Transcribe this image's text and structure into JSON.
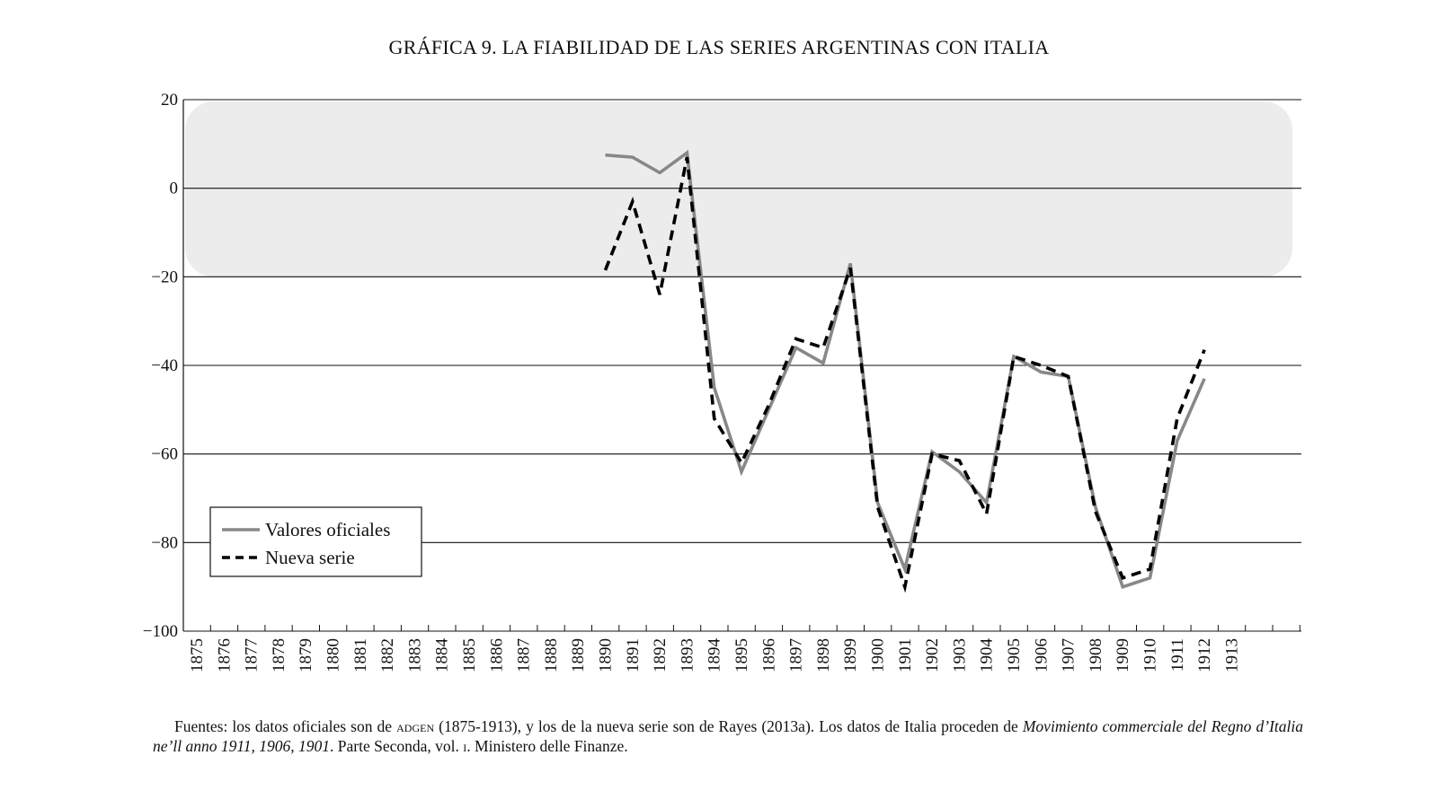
{
  "chart_data": {
    "type": "line",
    "title": "GRÁFICA 9. LA FIABILIDAD DE LAS SERIES ARGENTINAS CON ITALIA",
    "xlabel": "",
    "ylabel": "",
    "ylim": [
      -100,
      20
    ],
    "y_ticks": [
      20,
      0,
      -20,
      -40,
      -60,
      -80,
      -100
    ],
    "y_tick_labels": [
      "20",
      "0",
      "−20",
      "−40",
      "−60",
      "−80",
      "−100"
    ],
    "x_tick_labels": [
      "1875",
      "1876",
      "1877",
      "1878",
      "1879",
      "1880",
      "1881",
      "1882",
      "1883",
      "1884",
      "1885",
      "1886",
      "1887",
      "1888",
      "1889",
      "1890",
      "1891",
      "1892",
      "1893",
      "1894",
      "1895",
      "1896",
      "1897",
      "1898",
      "1899",
      "1900",
      "1901",
      "1902",
      "1903",
      "1904",
      "1905",
      "1906",
      "1907",
      "1908",
      "1909",
      "1910",
      "1911",
      "1912",
      "1913"
    ],
    "grid": "horizontal",
    "shaded_band": [
      -20,
      20
    ],
    "legend": {
      "position": "bottom-left",
      "entries": [
        "Valores oficiales",
        "Nueva serie"
      ]
    },
    "series": [
      {
        "name": "Valores oficiales",
        "style": "solid",
        "color": "#888888",
        "x": [
          1890,
          1891,
          1892,
          1893,
          1894,
          1895,
          1896,
          1897,
          1898,
          1899,
          1900,
          1901,
          1902,
          1903,
          1904,
          1905,
          1906,
          1907,
          1908,
          1909,
          1910,
          1911,
          1912
        ],
        "values": [
          7.5,
          7,
          3.5,
          8,
          -45,
          -64,
          -50,
          -36,
          -39.5,
          -17,
          -71,
          -86,
          -59.5,
          -64,
          -71,
          -38,
          -41.5,
          -42.5,
          -72,
          -90,
          -88,
          -57,
          -43
        ]
      },
      {
        "name": "Nueva serie",
        "style": "dashed",
        "color": "#000000",
        "x": [
          1890,
          1891,
          1892,
          1893,
          1894,
          1895,
          1896,
          1897,
          1898,
          1899,
          1900,
          1901,
          1902,
          1903,
          1904,
          1905,
          1906,
          1907,
          1908,
          1909,
          1910,
          1911,
          1912
        ],
        "values": [
          -18.5,
          -3,
          -24,
          7,
          -52,
          -62,
          -49,
          -34,
          -36,
          -18,
          -72,
          -90,
          -60,
          -61.5,
          -73.5,
          -38,
          -40,
          -42.5,
          -73,
          -88,
          -86,
          -52,
          -36.5
        ]
      }
    ]
  },
  "footnote": {
    "prefix": "Fuentes: los datos oficiales son de ",
    "smallcaps": "adgen",
    "middle": " (1875-1913), y los de la nueva serie son de Rayes (2013a). Los datos de Italia proceden de ",
    "italic": "Movimiento commerciale del Regno d’Italia ne’ll anno 1911, 1906, 1901",
    "middle2": ". Parte Seconda, vol. ",
    "smallcaps2": "i",
    "suffix": ". Ministero delle Finanze."
  }
}
